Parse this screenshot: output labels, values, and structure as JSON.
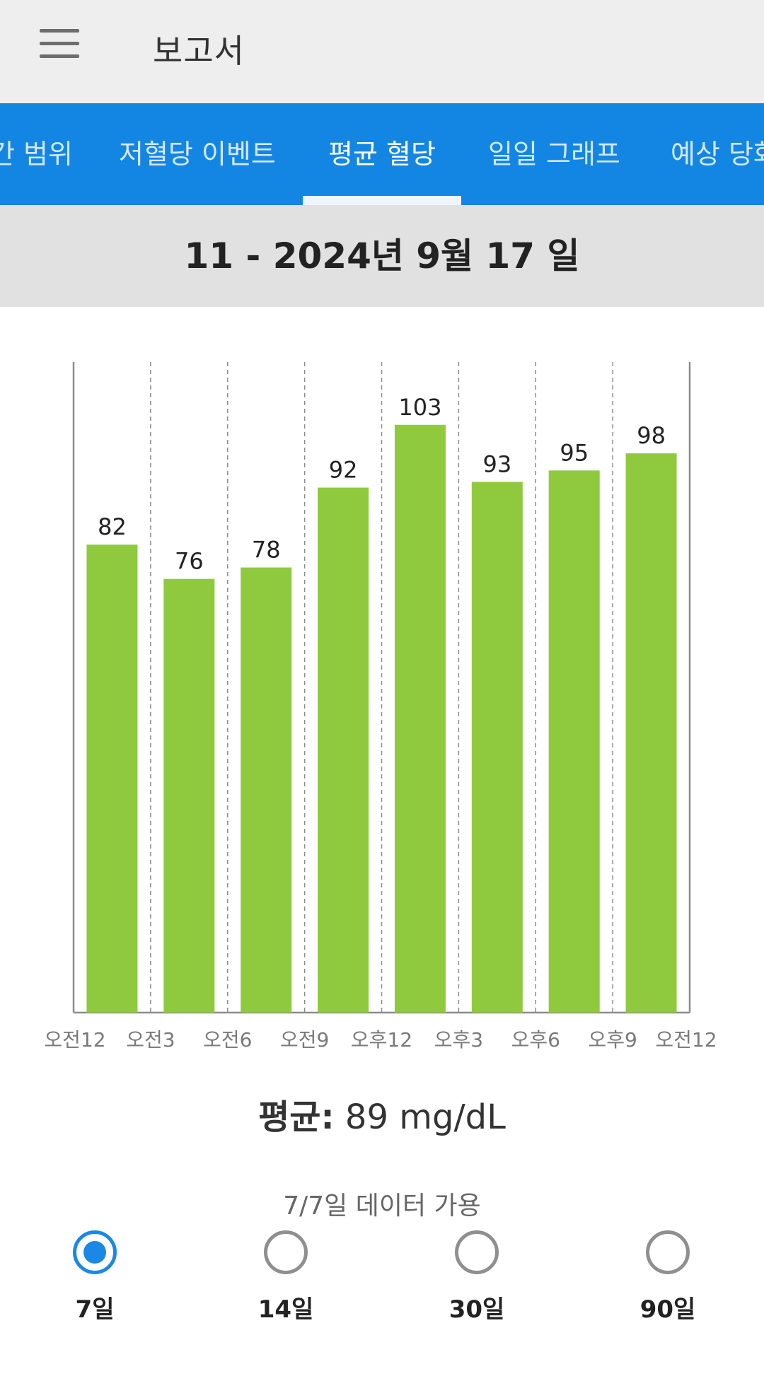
{
  "appbar": {
    "title": "보고서",
    "menu_icon": "hamburger-menu-icon"
  },
  "tabs": [
    {
      "label": "간 범위",
      "active": false
    },
    {
      "label": "저혈당 이벤트",
      "active": false
    },
    {
      "label": "평균 혈당",
      "active": true
    },
    {
      "label": "일일 그래프",
      "active": false
    },
    {
      "label": "예상 당화",
      "active": false
    }
  ],
  "date_range": "11 - 2024년 9월 17 일",
  "chart_data": {
    "type": "bar",
    "categories": [
      "오전12-오전3",
      "오전3-오전6",
      "오전6-오전9",
      "오전9-오후12",
      "오후12-오후3",
      "오후3-오후6",
      "오후6-오후9",
      "오후9-오전12"
    ],
    "values": [
      82,
      76,
      78,
      92,
      103,
      93,
      95,
      98
    ],
    "x_tick_labels": [
      "오전12",
      "오전3",
      "오전6",
      "오전9",
      "오후12",
      "오후3",
      "오후6",
      "오후9",
      "오전12"
    ],
    "ylim": [
      0,
      114
    ],
    "bar_color": "#8fca3e",
    "grid": "vertical-dashed",
    "xlabel": "",
    "ylabel": ""
  },
  "average": {
    "label": "평균:",
    "value": "89 mg/dL"
  },
  "data_availability": "7/7일 데이터 가용",
  "ranges": [
    {
      "label": "7일",
      "selected": true
    },
    {
      "label": "14일",
      "selected": false
    },
    {
      "label": "30일",
      "selected": false
    },
    {
      "label": "90일",
      "selected": false
    }
  ],
  "colors": {
    "primary": "#1386e4",
    "appbar_bg": "#eeeeee",
    "date_bg": "#e1e1e1",
    "bar": "#8fca3e"
  }
}
